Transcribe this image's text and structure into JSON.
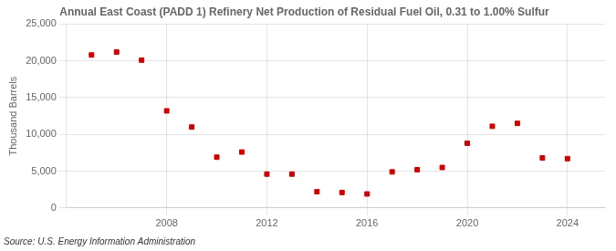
{
  "chart_data": {
    "type": "scatter",
    "title": "Annual East Coast (PADD 1) Refinery Net Production of Residual Fuel Oil, 0.31 to 1.00% Sulfur",
    "ylabel": "Thousand Barrels",
    "source": "Source: U.S. Energy Information Administration",
    "x": [
      2005,
      2006,
      2007,
      2008,
      2009,
      2010,
      2011,
      2012,
      2013,
      2014,
      2015,
      2016,
      2017,
      2018,
      2019,
      2020,
      2021,
      2022,
      2023,
      2024
    ],
    "values": [
      20800,
      21200,
      20100,
      13200,
      11000,
      6900,
      7600,
      4600,
      4600,
      2200,
      2100,
      1900,
      4900,
      5200,
      5500,
      8800,
      11100,
      11500,
      6800,
      6700
    ],
    "color": "#cc0000",
    "marker": "square",
    "xlim": [
      2004.0,
      2025.5
    ],
    "xticks": [
      2008,
      2012,
      2016,
      2020,
      2024
    ],
    "ylim": [
      0,
      25000
    ],
    "yticks": [
      0,
      {
        "value": 5000,
        "label": "5,000"
      },
      {
        "value": 10000,
        "label": "10,000"
      },
      {
        "value": 15000,
        "label": "15,000"
      },
      {
        "value": 20000,
        "label": "20,000"
      },
      {
        "value": 25000,
        "label": "25,000"
      }
    ],
    "grid": true
  }
}
